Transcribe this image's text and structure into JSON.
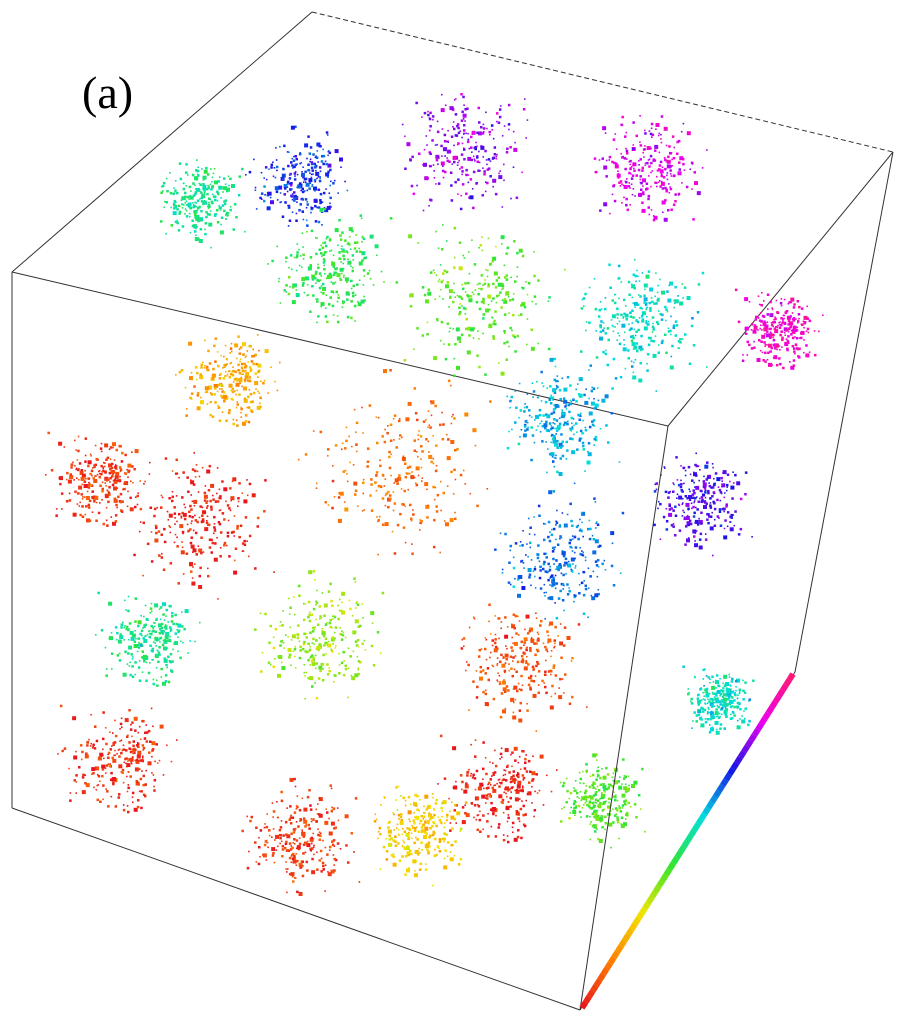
{
  "figure": {
    "panel_label": "(a)",
    "colorbar_colors": [
      "#e8141e",
      "#ff7f00",
      "#f2e600",
      "#2ee62e",
      "#00dede",
      "#1414e6",
      "#ee00ee",
      "#ff1a6e"
    ]
  }
}
